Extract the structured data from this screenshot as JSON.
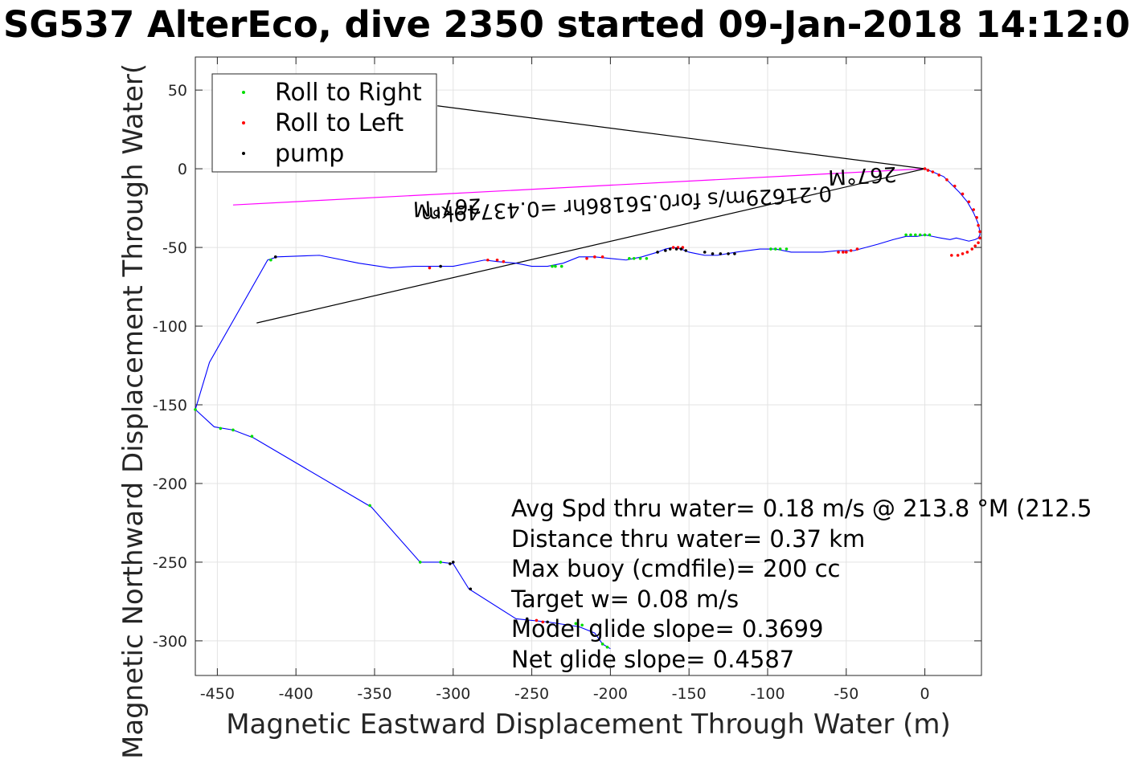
{
  "chart_data": {
    "type": "line",
    "title": "SG537 AlterEco, dive 2350 started 09-Jan-2018 14:12:0",
    "xlabel": "Magnetic Eastward Displacement Through Water (m)",
    "ylabel": "Magnetic Northward Displacement Through Water(",
    "xlim": [
      -464,
      36
    ],
    "ylim": [
      -322,
      71
    ],
    "xticks": [
      -450,
      -400,
      -350,
      -300,
      -250,
      -200,
      -150,
      -100,
      -50,
      0
    ],
    "yticks": [
      -300,
      -250,
      -200,
      -150,
      -100,
      -50,
      0,
      50
    ],
    "grid": true,
    "legend_position": "top-left",
    "legend": [
      {
        "label": "Roll to Right",
        "color": "#00dd00"
      },
      {
        "label": "Roll to Left",
        "color": "#ff0000"
      },
      {
        "label": "pump",
        "color": "#000000"
      }
    ],
    "track": {
      "color": "#0000ff",
      "x": [
        0,
        5,
        12,
        17,
        22,
        27,
        31,
        34,
        35,
        35,
        34,
        32,
        28,
        24,
        20,
        16,
        10,
        5,
        0,
        -5,
        -12,
        -20,
        -30,
        -45,
        -55,
        -65,
        -75,
        -85,
        -95,
        -105,
        -120,
        -132,
        -140,
        -145,
        -150,
        -155,
        -160,
        -165,
        -170,
        -180,
        -190,
        -200,
        -210,
        -220,
        -230,
        -240,
        -250,
        -260,
        -272,
        -280,
        -300,
        -315,
        -325,
        -340,
        -360,
        -385,
        -412,
        -418,
        -455,
        -464,
        -452,
        -440,
        -427,
        -352,
        -321,
        -308,
        -300,
        -290,
        -260,
        -240,
        -220,
        -210,
        -205,
        -200
      ],
      "y": [
        0,
        -2,
        -5,
        -10,
        -15,
        -21,
        -28,
        -35,
        -40,
        -42,
        -44,
        -45,
        -46,
        -45,
        -44,
        -45,
        -44,
        -43,
        -42,
        -43,
        -43,
        -45,
        -48,
        -52,
        -52,
        -53,
        -53,
        -53,
        -51,
        -51,
        -53,
        -55,
        -55,
        -54,
        -53,
        -51,
        -50,
        -51,
        -53,
        -56,
        -58,
        -57,
        -56,
        -56,
        -60,
        -62,
        -62,
        -60,
        -59,
        -58,
        -62,
        -62,
        -62,
        -63,
        -60,
        -55,
        -56,
        -58,
        -123,
        -153,
        -164,
        -166,
        -171,
        -215,
        -250,
        -250,
        -251,
        -267,
        -286,
        -288,
        -291,
        -295,
        -302,
        -305
      ]
    },
    "roll_right_points": {
      "x": [
        -448,
        -428,
        -353,
        -321,
        -308,
        -440,
        -416,
        -464,
        -237,
        -235,
        -231,
        -188,
        -185,
        -181,
        -177,
        -98,
        -95,
        -92,
        -88,
        -12,
        -9,
        -6,
        -3,
        0,
        3,
        -222,
        -218,
        -205,
        -202
      ],
      "y": [
        -165,
        -170,
        -214,
        -250,
        -250,
        -166,
        -58,
        -153,
        -62,
        -62,
        -62,
        -57,
        -57,
        -57,
        -57,
        -51,
        -51,
        -51,
        -51,
        -42,
        -42,
        -42,
        -42,
        -42,
        -42,
        -289,
        -290,
        -302,
        -304
      ]
    },
    "roll_left_points": {
      "x": [
        0,
        2,
        5,
        9,
        14,
        19,
        24,
        28,
        31,
        33,
        34,
        35,
        35,
        34,
        32,
        30,
        27,
        24,
        21,
        17,
        -55,
        -52,
        -50,
        -47,
        -43,
        -160,
        -157,
        -154,
        -205,
        -210,
        -215,
        -278,
        -272,
        -268,
        -243,
        -247,
        -315
      ],
      "y": [
        0,
        -1,
        -2,
        -4,
        -7,
        -11,
        -16,
        -21,
        -26,
        -31,
        -36,
        -40,
        -44,
        -47,
        -49,
        -51,
        -53,
        -54,
        -55,
        -55,
        -53,
        -53,
        -53,
        -52,
        -51,
        -50,
        -50,
        -50,
        -56,
        -56,
        -57,
        -58,
        -58,
        -59,
        -288,
        -287,
        -63
      ]
    },
    "pump_points": {
      "x": [
        -170,
        -165,
        -162,
        -158,
        -155,
        -152,
        -140,
        -135,
        -130,
        -125,
        -121,
        -300,
        -302,
        -289,
        -240,
        -253,
        -413,
        -308
      ],
      "y": [
        -53,
        -52,
        -51,
        -51,
        -51,
        -52,
        -53,
        -54,
        -54,
        -54,
        -54,
        -250,
        -251,
        -267,
        -288,
        -286,
        -56,
        -62
      ]
    },
    "heading_lines": [
      {
        "x": [
          0,
          -440
        ],
        "y": [
          0,
          -23
        ],
        "color": "#ff00ff"
      },
      {
        "x": [
          0,
          -425
        ],
        "y": [
          0,
          -98
        ],
        "color": "#000000"
      },
      {
        "x": [
          0,
          -310
        ],
        "y": [
          0,
          40
        ],
        "color": "#000000"
      }
    ],
    "heading_labels": [
      {
        "text": "267°M",
        "x": -40,
        "y": 0
      },
      {
        "text": "267°M",
        "x": -304,
        "y": -20
      },
      {
        "text": "0.21629m/s for0.56186hr =0.43749km",
        "x": -190,
        "y": -18
      }
    ],
    "annotations": [
      "Avg Spd thru water=  0.18 m/s @ 213.8 °M (212.5",
      "Distance thru water=  0.37 km",
      "Max buoy (cmdfile)= 200 cc",
      "Target w= 0.08 m/s",
      "Model glide slope= 0.3699",
      "Net glide slope= 0.4587"
    ]
  }
}
